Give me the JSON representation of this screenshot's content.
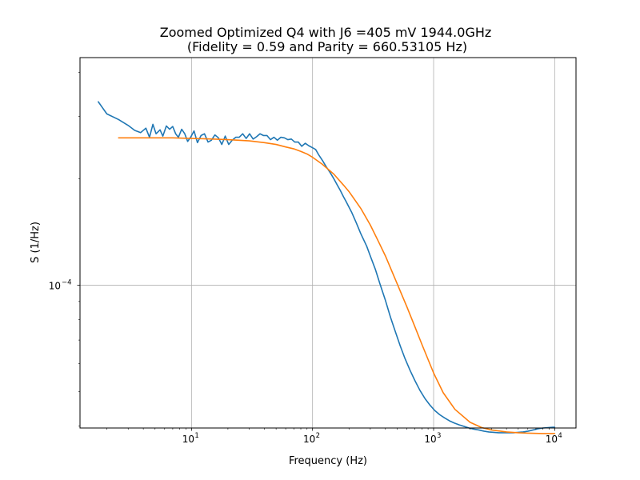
{
  "chart_data": {
    "type": "line",
    "title": "Zoomed Optimized Q4 with J6 =405 mV 1944.0GHz",
    "subtitle": "(Fidelity = 0.59 and Parity = 660.53105 Hz)",
    "xlabel": "Frequency (Hz)",
    "ylabel": "S (1/Hz)",
    "xscale": "log",
    "yscale": "log",
    "xlim": [
      1.2,
      15000
    ],
    "ylim": [
      3.95e-05,
      0.00044
    ],
    "grid": true,
    "x_ticks": [
      {
        "value": 10,
        "base": "10",
        "exp": "1"
      },
      {
        "value": 100,
        "base": "10",
        "exp": "2"
      },
      {
        "value": 1000,
        "base": "10",
        "exp": "3"
      },
      {
        "value": 10000,
        "base": "10",
        "exp": "4"
      }
    ],
    "y_ticks": [
      {
        "value": 0.0001,
        "base": "10",
        "exp": "−4"
      }
    ],
    "series": [
      {
        "color": "#1f77b4",
        "x": [
          1.7,
          2.0,
          2.5,
          3.0,
          3.4,
          3.8,
          4.2,
          4.5,
          4.8,
          5.1,
          5.5,
          5.8,
          6.2,
          6.6,
          7.0,
          7.4,
          7.8,
          8.3,
          8.8,
          9.3,
          9.9,
          10.5,
          11.2,
          12.0,
          12.8,
          13.7,
          14.6,
          15.6,
          16.7,
          17.8,
          19.0,
          20.3,
          21.7,
          23.2,
          24.8,
          26.5,
          28.3,
          30.2,
          32.3,
          34.5,
          36.8,
          39.3,
          42.0,
          44.9,
          48.0,
          51.2,
          54.7,
          58.5,
          62.5,
          66.8,
          71.3,
          76.2,
          81.4,
          87.0,
          93.0,
          99.3,
          106,
          113,
          121,
          130,
          140,
          150,
          160,
          170,
          180,
          190,
          210,
          230,
          250,
          280,
          300,
          330,
          360,
          400,
          440,
          480,
          530,
          580,
          640,
          700,
          770,
          850,
          930,
          1020,
          1120,
          1230,
          1350,
          1480,
          1630,
          1790,
          1960,
          2150,
          2360,
          2600,
          2850,
          3130,
          3440,
          3780,
          4150,
          4560,
          5010,
          5500,
          6040,
          6630,
          7280,
          8000,
          8790,
          9650,
          10000
        ],
        "y": [
          0.00033,
          0.000305,
          0.000294,
          0.000283,
          0.000274,
          0.00027,
          0.000278,
          0.000262,
          0.000285,
          0.000268,
          0.000275,
          0.000264,
          0.000282,
          0.000276,
          0.000281,
          0.000268,
          0.000262,
          0.000276,
          0.000268,
          0.000255,
          0.000263,
          0.000273,
          0.000253,
          0.000265,
          0.000268,
          0.000254,
          0.000257,
          0.000266,
          0.000261,
          0.00025,
          0.000264,
          0.00025,
          0.000257,
          0.000262,
          0.000262,
          0.000268,
          0.00026,
          0.000268,
          0.000259,
          0.000263,
          0.000268,
          0.000265,
          0.000265,
          0.000258,
          0.000262,
          0.000257,
          0.000262,
          0.000261,
          0.000258,
          0.000259,
          0.000254,
          0.000254,
          0.000247,
          0.000252,
          0.000248,
          0.000245,
          0.000242,
          0.000233,
          0.000225,
          0.000216,
          0.000208,
          0.0002,
          0.000192,
          0.000185,
          0.000178,
          0.000172,
          0.000161,
          0.00015,
          0.00014,
          0.000129,
          0.000121,
          0.000111,
          0.000101,
          9.06e-05,
          8.13e-05,
          7.44e-05,
          6.74e-05,
          6.21e-05,
          5.74e-05,
          5.38e-05,
          5.05e-05,
          4.78e-05,
          4.59e-05,
          4.43e-05,
          4.31e-05,
          4.22e-05,
          4.14e-05,
          4.08e-05,
          4.03e-05,
          3.99e-05,
          3.95e-05,
          3.92e-05,
          3.9e-05,
          3.87e-05,
          3.85e-05,
          3.84e-05,
          3.83e-05,
          3.83e-05,
          3.83e-05,
          3.83e-05,
          3.84e-05,
          3.85e-05,
          3.87e-05,
          3.9e-05,
          3.93e-05,
          3.95e-05,
          3.96e-05,
          3.97e-05,
          3.97e-05
        ]
      },
      {
        "color": "#ff7f0e",
        "x": [
          2.5,
          3.0,
          4.0,
          5.0,
          7.0,
          10,
          15,
          20,
          30,
          40,
          50,
          60,
          70,
          80,
          90,
          100,
          120,
          150,
          180,
          200,
          250,
          300,
          350,
          400,
          450,
          500,
          600,
          700,
          800,
          1000,
          1200,
          1500,
          2000,
          2500,
          3000,
          4000,
          5000,
          6000,
          8000,
          10000
        ],
        "y": [
          0.000261,
          0.000261,
          0.000261,
          0.000261,
          0.000261,
          0.00026,
          0.000259,
          0.000258,
          0.000256,
          0.000253,
          0.00025,
          0.000246,
          0.000243,
          0.000239,
          0.000235,
          0.00023,
          0.00022,
          0.000206,
          0.000192,
          0.000184,
          0.000165,
          0.000148,
          0.000133,
          0.000121,
          0.00011,
          0.000101,
          8.71e-05,
          7.64e-05,
          6.81e-05,
          5.65e-05,
          4.97e-05,
          4.46e-05,
          4.1e-05,
          3.96e-05,
          3.9e-05,
          3.85e-05,
          3.83e-05,
          3.82e-05,
          3.81e-05,
          3.81e-05
        ]
      }
    ]
  }
}
